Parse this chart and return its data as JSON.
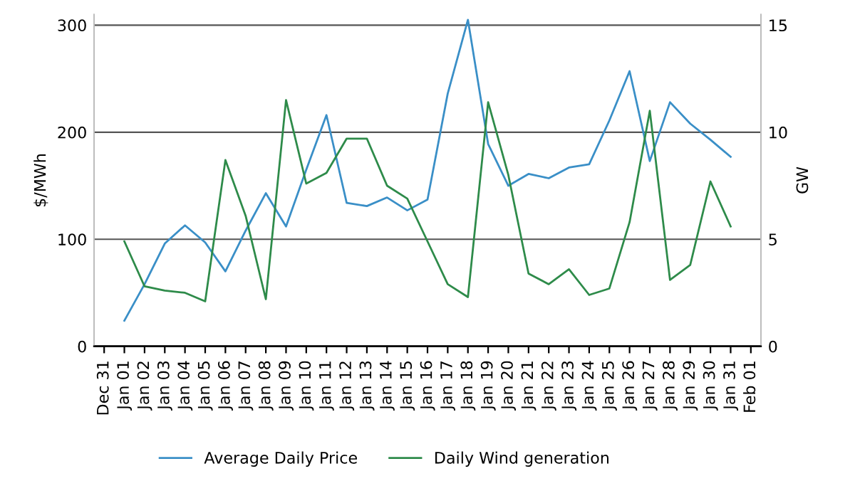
{
  "chart_data": {
    "type": "line",
    "ylabel": "$/MWh",
    "y2label": "GW",
    "categories": [
      "Dec 31",
      "Jan 01",
      "Jan 02",
      "Jan 03",
      "Jan 04",
      "Jan 05",
      "Jan 06",
      "Jan 07",
      "Jan 08",
      "Jan 09",
      "Jan 10",
      "Jan 11",
      "Jan 12",
      "Jan 13",
      "Jan 14",
      "Jan 15",
      "Jan 16",
      "Jan 17",
      "Jan 18",
      "Jan 19",
      "Jan 20",
      "Jan 21",
      "Jan 22",
      "Jan 23",
      "Jan 24",
      "Jan 25",
      "Jan 26",
      "Jan 27",
      "Jan 28",
      "Jan 29",
      "Jan 30",
      "Jan 31",
      "Feb 01"
    ],
    "series": [
      {
        "name": "Average Daily Price",
        "color": "#3a8fc7",
        "values": [
          null,
          24,
          58,
          96,
          113,
          97,
          70,
          108,
          143,
          112,
          165,
          216,
          134,
          131,
          139,
          127,
          137,
          236,
          305,
          189,
          150,
          161,
          157,
          167,
          170,
          211,
          257,
          173,
          228,
          208,
          193,
          177,
          null
        ]
      },
      {
        "name": "Daily Wind generation",
        "color": "#2e8b4a",
        "axis": "y2",
        "values": [
          null,
          4.9,
          2.8,
          2.6,
          2.5,
          2.1,
          8.7,
          6.1,
          2.2,
          11.5,
          7.6,
          8.1,
          9.7,
          9.7,
          7.5,
          6.9,
          4.9,
          2.9,
          2.3,
          11.4,
          8.0,
          3.4,
          2.9,
          3.6,
          2.4,
          2.7,
          5.8,
          11.0,
          3.1,
          3.8,
          7.7,
          5.6,
          null
        ]
      }
    ],
    "ylim": [
      0,
      310
    ],
    "yticks": [
      0,
      100,
      200,
      300
    ],
    "y2lim": [
      0,
      15.5
    ],
    "y2ticks": [
      0,
      5,
      10,
      15
    ],
    "grid": "y",
    "legend": "bottom"
  }
}
